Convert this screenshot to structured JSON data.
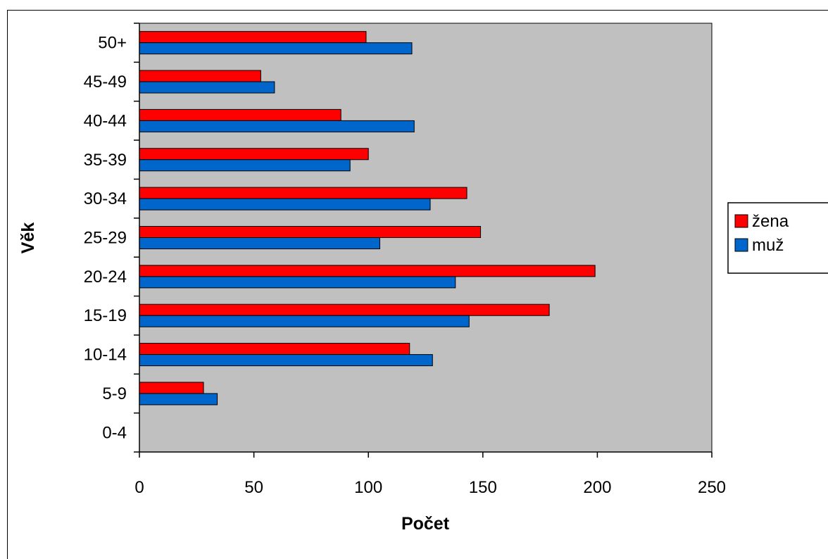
{
  "chart_data": {
    "type": "bar",
    "orientation": "horizontal",
    "title": "",
    "xlabel": "Počet",
    "ylabel": "Věk",
    "categories": [
      "0-4",
      "5-9",
      "10-14",
      "15-19",
      "20-24",
      "25-29",
      "30-34",
      "35-39",
      "40-44",
      "45-49",
      "50+"
    ],
    "series": [
      {
        "name": "žena",
        "color": "#ff0000",
        "values": [
          0,
          28,
          118,
          179,
          199,
          149,
          143,
          100,
          88,
          53,
          99
        ]
      },
      {
        "name": "muž",
        "color": "#0066cc",
        "values": [
          0,
          34,
          128,
          144,
          138,
          105,
          127,
          92,
          120,
          59,
          119
        ]
      }
    ],
    "xlim": [
      0,
      250
    ],
    "xticks": [
      "0",
      "50",
      "100",
      "150",
      "200",
      "250"
    ],
    "grid": false,
    "plot_background": "#c0c0c0",
    "legend_position": "right"
  }
}
